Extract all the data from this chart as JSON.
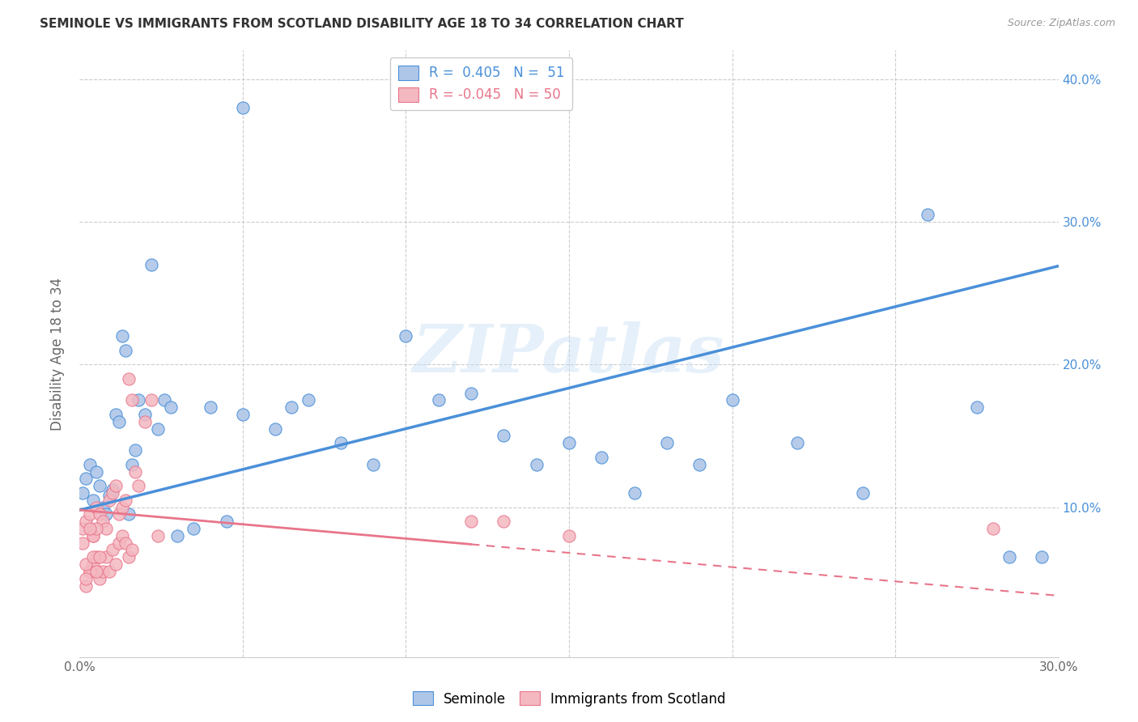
{
  "title": "SEMINOLE VS IMMIGRANTS FROM SCOTLAND DISABILITY AGE 18 TO 34 CORRELATION CHART",
  "source": "Source: ZipAtlas.com",
  "ylabel": "Disability Age 18 to 34",
  "xlim": [
    0.0,
    0.3
  ],
  "ylim": [
    -0.005,
    0.42
  ],
  "xticks": [
    0.0,
    0.05,
    0.1,
    0.15,
    0.2,
    0.25,
    0.3
  ],
  "yticks": [
    0.0,
    0.1,
    0.2,
    0.3,
    0.4
  ],
  "watermark": "ZIPatlas",
  "legend_blue_R": "0.405",
  "legend_blue_N": "51",
  "legend_pink_R": "-0.045",
  "legend_pink_N": "50",
  "blue_color": "#aec6e8",
  "pink_color": "#f4b8c1",
  "blue_line_color": "#4a90d9",
  "pink_line_color": "#e8758a",
  "blue_intercept": 0.098,
  "blue_slope": 0.57,
  "pink_intercept": 0.098,
  "pink_slope": -0.2,
  "seminole_x": [
    0.001,
    0.002,
    0.003,
    0.004,
    0.005,
    0.006,
    0.007,
    0.008,
    0.009,
    0.01,
    0.011,
    0.012,
    0.013,
    0.014,
    0.015,
    0.016,
    0.017,
    0.018,
    0.02,
    0.022,
    0.024,
    0.026,
    0.028,
    0.03,
    0.035,
    0.04,
    0.045,
    0.05,
    0.06,
    0.065,
    0.07,
    0.08,
    0.09,
    0.1,
    0.11,
    0.12,
    0.13,
    0.14,
    0.15,
    0.16,
    0.17,
    0.18,
    0.19,
    0.2,
    0.22,
    0.24,
    0.26,
    0.275,
    0.285,
    0.295,
    0.05
  ],
  "seminole_y": [
    0.11,
    0.12,
    0.13,
    0.105,
    0.125,
    0.115,
    0.1,
    0.095,
    0.108,
    0.112,
    0.165,
    0.16,
    0.22,
    0.21,
    0.095,
    0.13,
    0.14,
    0.175,
    0.165,
    0.27,
    0.155,
    0.175,
    0.17,
    0.08,
    0.085,
    0.17,
    0.09,
    0.165,
    0.155,
    0.17,
    0.175,
    0.145,
    0.13,
    0.22,
    0.175,
    0.18,
    0.15,
    0.13,
    0.145,
    0.135,
    0.11,
    0.145,
    0.13,
    0.175,
    0.145,
    0.11,
    0.305,
    0.17,
    0.065,
    0.065,
    0.38
  ],
  "scotland_x": [
    0.001,
    0.002,
    0.003,
    0.004,
    0.005,
    0.006,
    0.007,
    0.008,
    0.009,
    0.01,
    0.011,
    0.012,
    0.013,
    0.014,
    0.015,
    0.016,
    0.017,
    0.018,
    0.02,
    0.022,
    0.024,
    0.002,
    0.003,
    0.004,
    0.005,
    0.006,
    0.007,
    0.008,
    0.009,
    0.01,
    0.011,
    0.012,
    0.013,
    0.014,
    0.015,
    0.016,
    0.004,
    0.005,
    0.003,
    0.002,
    0.001,
    0.002,
    0.003,
    0.004,
    0.005,
    0.006,
    0.12,
    0.13,
    0.15,
    0.28
  ],
  "scotland_y": [
    0.085,
    0.09,
    0.095,
    0.08,
    0.1,
    0.095,
    0.09,
    0.085,
    0.105,
    0.11,
    0.115,
    0.095,
    0.1,
    0.105,
    0.19,
    0.175,
    0.125,
    0.115,
    0.16,
    0.175,
    0.08,
    0.045,
    0.055,
    0.06,
    0.065,
    0.05,
    0.055,
    0.065,
    0.055,
    0.07,
    0.06,
    0.075,
    0.08,
    0.075,
    0.065,
    0.07,
    0.08,
    0.085,
    0.055,
    0.05,
    0.075,
    0.06,
    0.085,
    0.065,
    0.055,
    0.065,
    0.09,
    0.09,
    0.08,
    0.085
  ]
}
